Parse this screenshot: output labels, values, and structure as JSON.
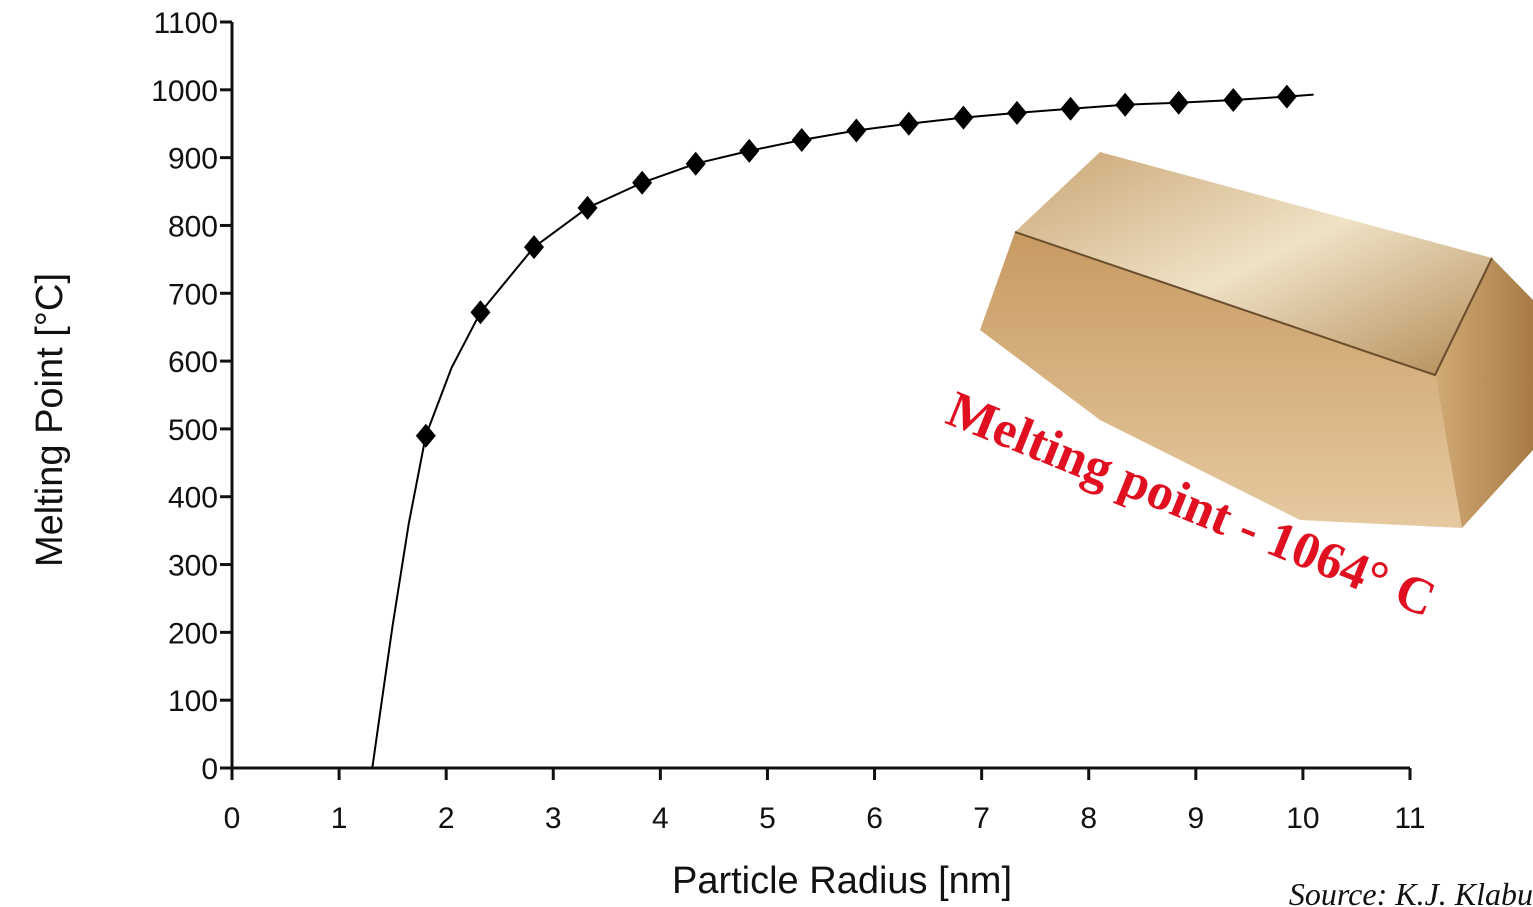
{
  "chart_data": {
    "type": "scatter",
    "x": [
      1.81,
      2.32,
      2.82,
      3.32,
      3.83,
      4.33,
      4.83,
      5.32,
      5.83,
      6.32,
      6.83,
      7.33,
      7.83,
      8.34,
      8.84,
      9.35,
      9.85
    ],
    "y": [
      490,
      672,
      768,
      826,
      863,
      891,
      910,
      926,
      940,
      950,
      959,
      966,
      972,
      978,
      981,
      985,
      990
    ],
    "color": "#000000",
    "fit": {
      "x": [
        1.31,
        1.4,
        1.5,
        1.65,
        1.81,
        2.05,
        2.32,
        2.82,
        3.32,
        3.83,
        4.33,
        4.83,
        5.32,
        5.83,
        6.32,
        6.83,
        7.33,
        7.83,
        8.34,
        8.84,
        9.35,
        9.85,
        10.1
      ],
      "y": [
        0,
        100,
        210,
        360,
        490,
        590,
        672,
        768,
        826,
        863,
        891,
        910,
        926,
        940,
        950,
        959,
        966,
        972,
        978,
        981,
        985,
        990,
        993
      ]
    },
    "xlim": [
      0,
      11
    ],
    "ylim": [
      0,
      1100
    ],
    "xticks": [
      0,
      1,
      2,
      3,
      4,
      5,
      6,
      7,
      8,
      9,
      10,
      11
    ],
    "yticks": [
      0,
      100,
      200,
      300,
      400,
      500,
      600,
      700,
      800,
      900,
      1000,
      1100
    ],
    "xlabel": "Particle Radius [nm]",
    "ylabel": "Melting Point [°C]",
    "annotation": "Melting point - 1064° C",
    "source": "Source: K.J. Klabu"
  }
}
